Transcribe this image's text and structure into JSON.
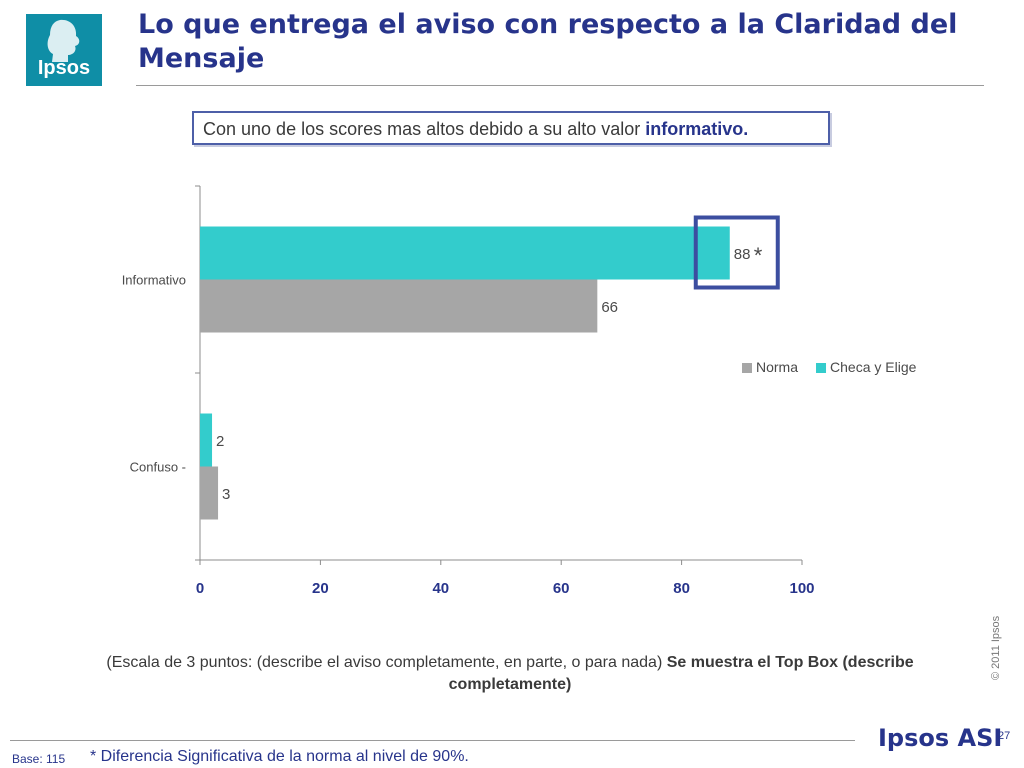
{
  "logo": {
    "text": "Ipsos"
  },
  "title": "Lo que entrega el aviso con respecto a la Claridad del Mensaje",
  "callout": {
    "text": "Con uno de los scores mas altos debido a su alto valor ",
    "emphasis": "informativo."
  },
  "chart_data": {
    "type": "bar",
    "orientation": "horizontal",
    "categories": [
      "Informativo",
      "Confuso -"
    ],
    "series": [
      {
        "name": "Checa y Elige",
        "color": "#33cccc",
        "values": [
          88,
          2
        ],
        "labels": [
          "88",
          "2"
        ]
      },
      {
        "name": "Norma",
        "color": "#a6a6a6",
        "values": [
          66,
          3
        ],
        "labels": [
          "66",
          "3"
        ]
      }
    ],
    "legend_order": [
      "Norma",
      "Checa y Elige"
    ],
    "legend_position": "right",
    "significance_marker": "*",
    "highlighted": {
      "category": "Informativo",
      "series": "Checa y Elige"
    },
    "xlim": [
      0,
      100
    ],
    "xticks": [
      "0",
      "20",
      "40",
      "60",
      "80",
      "100"
    ],
    "grid": false
  },
  "scale_note": {
    "text": "(Escala de 3 puntos: (describe el aviso completamente,  en parte, o para nada) ",
    "bold": "Se muestra el Top Box (describe completamente)"
  },
  "copyright": "© 2011 Ipsos",
  "footer": {
    "brand": "Ipsos ASI",
    "page_number": "27",
    "base": "Base: 115",
    "footnote": "* Diferencia Significativa de la norma al nivel de 90%."
  }
}
